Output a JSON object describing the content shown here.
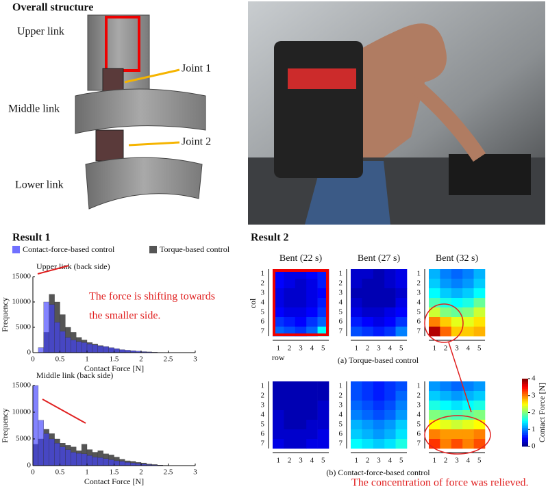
{
  "overall": {
    "title": "Overall structure",
    "labels": [
      "Upper link",
      "Joint 1",
      "Middle link",
      "Joint 2",
      "Lower link"
    ]
  },
  "chart_data": [
    {
      "type": "histogram",
      "title": "Result 1",
      "subtitle": "Upper link (back side)",
      "xlabel": "Contact Force [N]",
      "ylabel": "Frequency",
      "bins": [
        0,
        0.1,
        0.2,
        0.3,
        0.4,
        0.5,
        0.6,
        0.7,
        0.8,
        0.9,
        1,
        1.1,
        1.2,
        1.3,
        1.4,
        1.5,
        1.6,
        1.7,
        1.8,
        1.9,
        2,
        2.1,
        2.2,
        2.3,
        2.4,
        2.5,
        2.6
      ],
      "series": [
        {
          "name": "Torque-based control",
          "color": "#555555",
          "values": [
            0,
            0,
            4000,
            11500,
            10000,
            7500,
            5000,
            4000,
            3000,
            2500,
            2000,
            1700,
            1400,
            1200,
            900,
            700,
            500,
            400,
            300,
            200,
            150,
            100,
            50,
            30,
            0,
            0
          ]
        },
        {
          "name": "Contact-force-based control",
          "color": "#4040ff",
          "values": [
            0,
            1000,
            10000,
            9500,
            6000,
            4200,
            3000,
            2500,
            2200,
            2000,
            1700,
            1500,
            1300,
            1200,
            1000,
            800,
            600,
            500,
            400,
            300,
            200,
            150,
            100,
            50,
            30,
            0
          ]
        }
      ],
      "xlim": [
        0,
        3
      ],
      "xticks": [
        0,
        0.5,
        1,
        1.5,
        2,
        2.5,
        3
      ],
      "ylim": [
        0,
        15000
      ],
      "yticks": [
        0,
        5000,
        10000,
        15000
      ],
      "annotations": [
        "The force is shifting towards",
        "the smaller side."
      ]
    },
    {
      "type": "histogram",
      "subtitle": "Middle link (back side)",
      "xlabel": "Contact Force [N]",
      "ylabel": "Frequency",
      "bins": [
        0,
        0.1,
        0.2,
        0.3,
        0.4,
        0.5,
        0.6,
        0.7,
        0.8,
        0.9,
        1,
        1.1,
        1.2,
        1.3,
        1.4,
        1.5,
        1.6,
        1.7,
        1.8,
        1.9,
        2,
        2.1,
        2.2,
        2.3,
        2.4,
        2.5,
        2.6
      ],
      "series": [
        {
          "color": "#555555",
          "values": [
            4000,
            5000,
            6800,
            6000,
            5000,
            4200,
            3800,
            3500,
            2800,
            4000,
            3000,
            2500,
            2800,
            2200,
            2000,
            1600,
            1200,
            900,
            800,
            600,
            500,
            300,
            200,
            100,
            50,
            0
          ]
        },
        {
          "color": "#4040ff",
          "values": [
            15000,
            8500,
            6000,
            5000,
            4200,
            3500,
            3000,
            2500,
            2300,
            2200,
            1900,
            1600,
            1500,
            1300,
            1100,
            900,
            800,
            600,
            500,
            400,
            300,
            200,
            150,
            100,
            50,
            0
          ]
        }
      ],
      "xlim": [
        0,
        3
      ],
      "xticks": [
        0,
        0.5,
        1,
        1.5,
        2,
        2.5,
        3
      ],
      "ylim": [
        0,
        15000
      ],
      "yticks": [
        0,
        5000,
        10000,
        15000
      ]
    },
    {
      "type": "heatmap",
      "title": "Result 2",
      "xlabel": "row",
      "ylabel": "col",
      "xticks": [
        1,
        2,
        3,
        4,
        5
      ],
      "yticks": [
        1,
        2,
        3,
        4,
        5,
        6,
        7
      ],
      "colorbar": {
        "label": "Contact Force [N]",
        "lim": [
          0,
          4
        ],
        "ticks": [
          0,
          1,
          2,
          3,
          4
        ]
      },
      "annotation": "The concentration of force was relieved.",
      "rows": [
        {
          "caption": "(a) Torque-based control",
          "panels": [
            {
              "title": "Bent (22 s)",
              "values": [
                [
                  0.5,
                  0.4,
                  0.4,
                  0.5,
                  0.6
                ],
                [
                  0.5,
                  0.4,
                  0.3,
                  0.4,
                  0.6
                ],
                [
                  0.4,
                  0.3,
                  0.3,
                  0.4,
                  0.5
                ],
                [
                  0.4,
                  0.3,
                  0.3,
                  0.4,
                  0.6
                ],
                [
                  0.5,
                  0.4,
                  0.4,
                  0.5,
                  0.7
                ],
                [
                  0.7,
                  0.6,
                  0.5,
                  0.7,
                  0.9
                ],
                [
                  0.9,
                  0.8,
                  0.7,
                  0.9,
                  1.5
                ]
              ]
            },
            {
              "title": "Bent (27 s)",
              "values": [
                [
                  0.3,
                  0.3,
                  0.2,
                  0.3,
                  0.4
                ],
                [
                  0.3,
                  0.2,
                  0.2,
                  0.3,
                  0.4
                ],
                [
                  0.2,
                  0.2,
                  0.2,
                  0.2,
                  0.3
                ],
                [
                  0.3,
                  0.2,
                  0.2,
                  0.2,
                  0.4
                ],
                [
                  0.4,
                  0.3,
                  0.3,
                  0.4,
                  0.5
                ],
                [
                  0.6,
                  0.5,
                  0.4,
                  0.5,
                  0.7
                ],
                [
                  0.8,
                  0.7,
                  0.6,
                  0.7,
                  1.0
                ]
              ]
            },
            {
              "title": "Bent (32 s)",
              "values": [
                [
                  1.2,
                  1.0,
                  0.9,
                  1.0,
                  1.2
                ],
                [
                  1.3,
                  1.1,
                  1.0,
                  1.1,
                  1.3
                ],
                [
                  1.5,
                  1.3,
                  1.2,
                  1.3,
                  1.5
                ],
                [
                  1.8,
                  1.6,
                  1.5,
                  1.6,
                  1.9
                ],
                [
                  2.3,
                  2.0,
                  1.9,
                  2.0,
                  2.3
                ],
                [
                  3.0,
                  2.7,
                  2.4,
                  2.4,
                  2.6
                ],
                [
                  3.8,
                  3.1,
                  2.7,
                  2.7,
                  2.8
                ]
              ]
            }
          ]
        },
        {
          "caption": "(b) Contact-force-based control",
          "panels": [
            {
              "values": [
                [
                  0.2,
                  0.2,
                  0.2,
                  0.2,
                  0.2
                ],
                [
                  0.2,
                  0.2,
                  0.2,
                  0.2,
                  0.2
                ],
                [
                  0.2,
                  0.2,
                  0.2,
                  0.2,
                  0.3
                ],
                [
                  0.3,
                  0.2,
                  0.2,
                  0.2,
                  0.3
                ],
                [
                  0.3,
                  0.2,
                  0.2,
                  0.3,
                  0.3
                ],
                [
                  0.3,
                  0.3,
                  0.3,
                  0.3,
                  0.4
                ],
                [
                  0.4,
                  0.3,
                  0.3,
                  0.4,
                  0.4
                ]
              ]
            },
            {
              "values": [
                [
                  0.8,
                  0.7,
                  0.6,
                  0.7,
                  0.8
                ],
                [
                  0.8,
                  0.7,
                  0.6,
                  0.7,
                  0.9
                ],
                [
                  0.9,
                  0.8,
                  0.7,
                  0.8,
                  1.0
                ],
                [
                  1.0,
                  0.9,
                  0.8,
                  0.9,
                  1.1
                ],
                [
                  1.2,
                  1.1,
                  1.0,
                  1.1,
                  1.3
                ],
                [
                  1.3,
                  1.2,
                  1.1,
                  1.2,
                  1.4
                ],
                [
                  1.5,
                  1.4,
                  1.3,
                  1.4,
                  1.6
                ]
              ]
            },
            {
              "values": [
                [
                  1.1,
                  1.0,
                  0.9,
                  1.0,
                  1.1
                ],
                [
                  1.3,
                  1.2,
                  1.1,
                  1.2,
                  1.3
                ],
                [
                  1.6,
                  1.5,
                  1.4,
                  1.5,
                  1.6
                ],
                [
                  2.0,
                  1.9,
                  1.8,
                  1.9,
                  2.0
                ],
                [
                  2.5,
                  2.4,
                  2.3,
                  2.4,
                  2.5
                ],
                [
                  3.0,
                  2.9,
                  2.9,
                  2.9,
                  3.0
                ],
                [
                  3.3,
                  3.0,
                  3.2,
                  3.0,
                  3.2
                ]
              ]
            }
          ]
        }
      ]
    }
  ]
}
